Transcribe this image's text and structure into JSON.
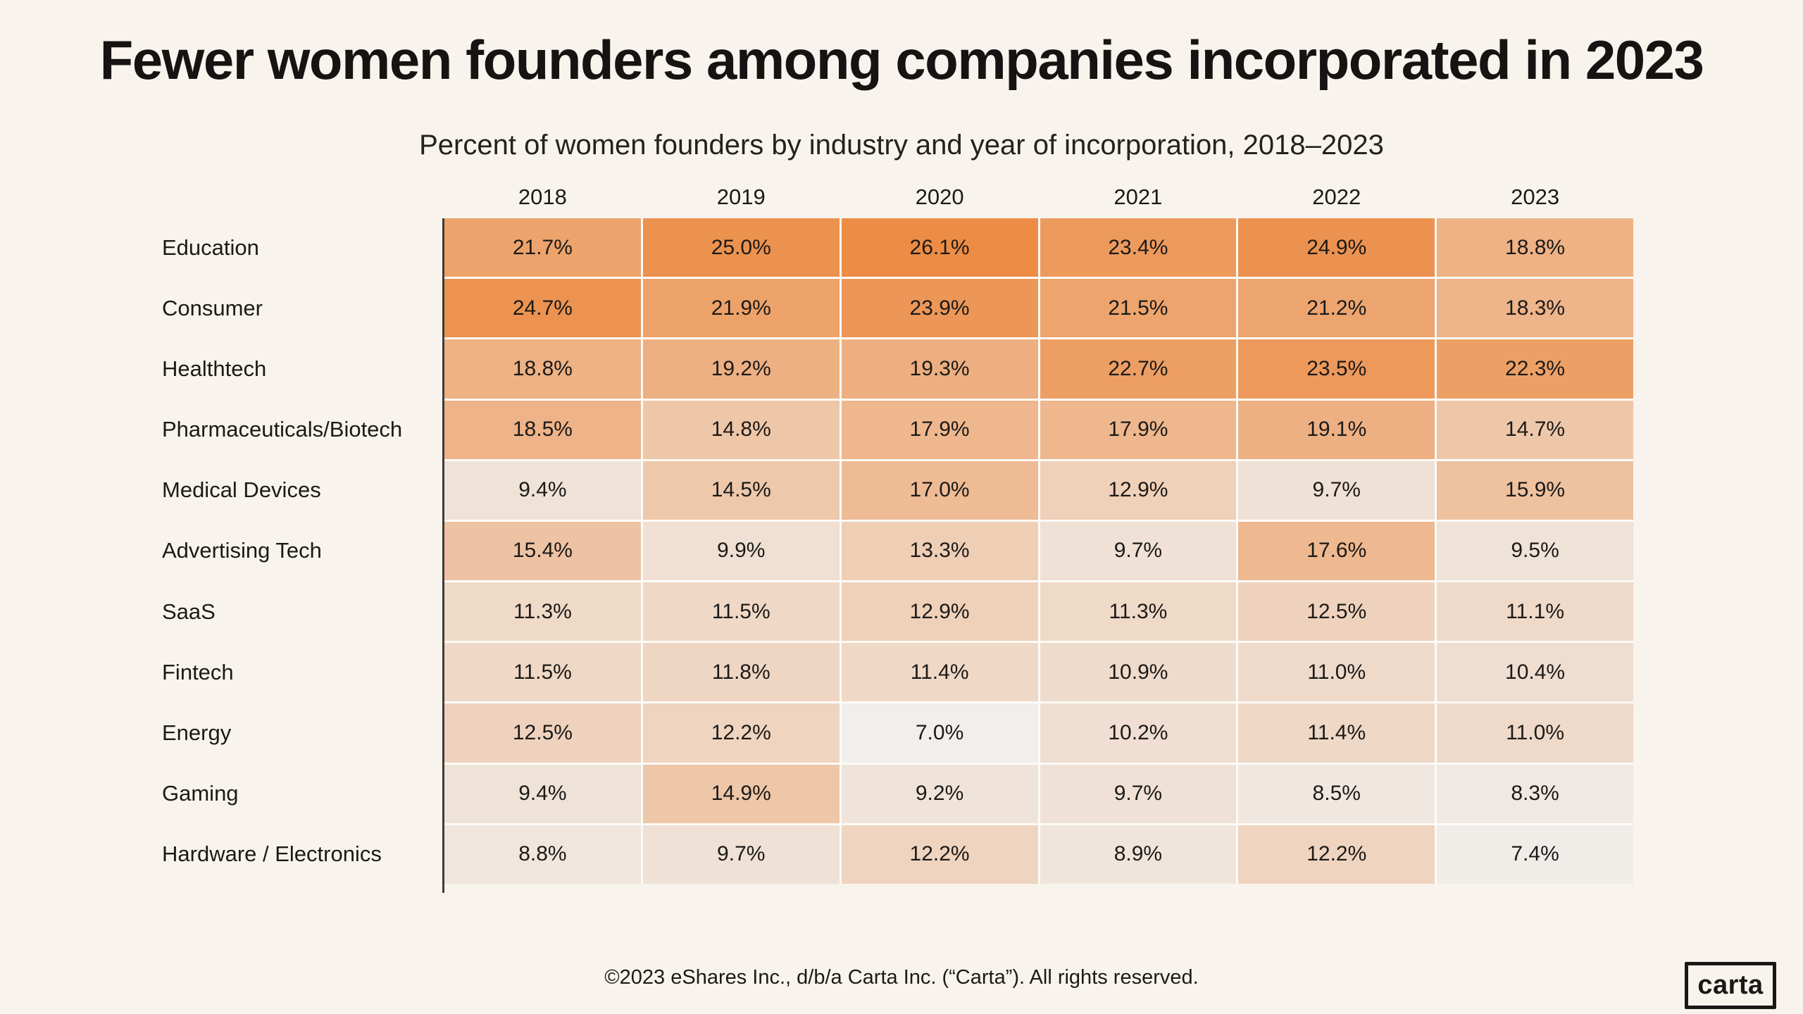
{
  "page": {
    "background_color": "#f8f4ed",
    "title": "Fewer women founders among companies incorporated in 2023",
    "subtitle": "Percent of women founders by industry and year of incorporation, 2018–2023",
    "footer": "©2023 eShares Inc., d/b/a Carta Inc. (“Carta”). All rights reserved.",
    "logo_text": "carta"
  },
  "chart_data": {
    "type": "heatmap",
    "title": "Fewer women founders among companies incorporated in 2023",
    "subtitle": "Percent of women founders by industry and year of incorporation, 2018–2023",
    "columns": [
      "2018",
      "2019",
      "2020",
      "2021",
      "2022",
      "2023"
    ],
    "rows": [
      {
        "label": "Education",
        "values": [
          21.7,
          25.0,
          26.1,
          23.4,
          24.9,
          18.8
        ]
      },
      {
        "label": "Consumer",
        "values": [
          24.7,
          21.9,
          23.9,
          21.5,
          21.2,
          18.3
        ]
      },
      {
        "label": "Healthtech",
        "values": [
          18.8,
          19.2,
          19.3,
          22.7,
          23.5,
          22.3
        ]
      },
      {
        "label": "Pharmaceuticals/Biotech",
        "values": [
          18.5,
          14.8,
          17.9,
          17.9,
          19.1,
          14.7
        ]
      },
      {
        "label": "Medical Devices",
        "values": [
          9.4,
          14.5,
          17.0,
          12.9,
          9.7,
          15.9
        ]
      },
      {
        "label": "Advertising Tech",
        "values": [
          15.4,
          9.9,
          13.3,
          9.7,
          17.6,
          9.5
        ]
      },
      {
        "label": "SaaS",
        "values": [
          11.3,
          11.5,
          12.9,
          11.3,
          12.5,
          11.1
        ]
      },
      {
        "label": "Fintech",
        "values": [
          11.5,
          11.8,
          11.4,
          10.9,
          11.0,
          10.4
        ]
      },
      {
        "label": "Energy",
        "values": [
          12.5,
          12.2,
          7.0,
          10.2,
          11.4,
          11.0
        ]
      },
      {
        "label": "Gaming",
        "values": [
          9.4,
          14.9,
          9.2,
          9.7,
          8.5,
          8.3
        ]
      },
      {
        "label": "Hardware / Electronics",
        "values": [
          8.8,
          9.7,
          12.2,
          8.9,
          12.2,
          7.4
        ]
      }
    ],
    "value_suffix": "%",
    "value_decimals": 1,
    "color_scale": {
      "min_value": 7.0,
      "max_value": 26.1,
      "min_color": "#f0efed",
      "max_color": "#ec8c45"
    },
    "cell_text_color": "#1c1a18",
    "grid_line_color": "#fcfbf8",
    "axis_line_color": "#3f3b36",
    "legend": "none",
    "grid": "white separators between cells"
  }
}
